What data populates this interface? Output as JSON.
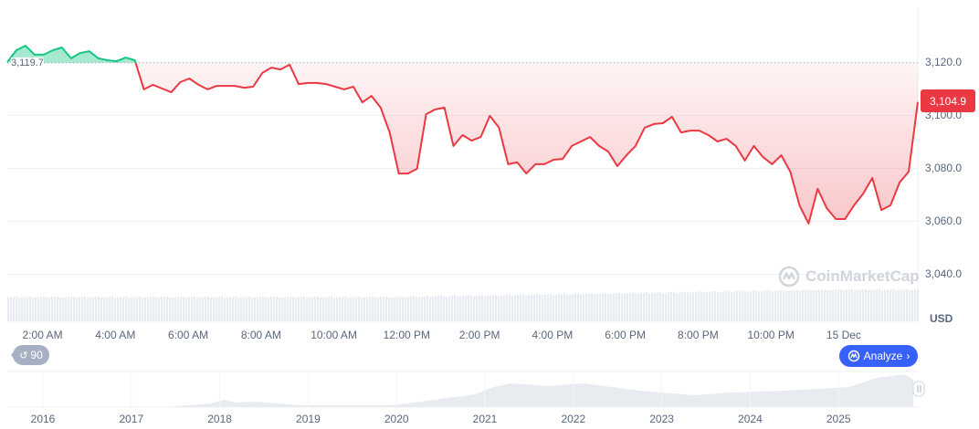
{
  "chart_data": {
    "type": "area",
    "title": "",
    "xlabel": "",
    "ylabel": "",
    "currency_label": "USD",
    "start_time": "01:02",
    "interval_minutes": 15,
    "baseline": 3119.7,
    "baseline_label": "3,119.7",
    "current_price": 3104.9,
    "current_price_label": "3,104.9",
    "ylim": [
      3030,
      3130
    ],
    "grid": true,
    "values": [
      3120.0,
      3124.5,
      3126.2,
      3122.8,
      3122.8,
      3124.5,
      3125.5,
      3121.4,
      3123.4,
      3124.1,
      3121.4,
      3120.7,
      3120.3,
      3121.7,
      3120.7,
      3109.7,
      3111.4,
      3110.0,
      3108.6,
      3112.4,
      3113.8,
      3111.4,
      3109.7,
      3111.0,
      3111.0,
      3111.0,
      3110.3,
      3110.7,
      3115.9,
      3117.9,
      3117.2,
      3119.0,
      3111.7,
      3112.1,
      3112.1,
      3111.7,
      3110.7,
      3109.7,
      3110.7,
      3104.8,
      3107.2,
      3102.8,
      3093.4,
      3077.9,
      3077.9,
      3079.7,
      3100.3,
      3102.1,
      3102.8,
      3088.3,
      3092.4,
      3090.3,
      3091.7,
      3099.7,
      3095.2,
      3081.4,
      3082.1,
      3077.9,
      3081.4,
      3081.4,
      3083.1,
      3083.4,
      3088.3,
      3090.0,
      3091.7,
      3088.3,
      3086.2,
      3080.7,
      3084.8,
      3088.3,
      3095.2,
      3096.6,
      3096.9,
      3099.3,
      3093.4,
      3094.1,
      3094.1,
      3092.4,
      3090.0,
      3091.0,
      3088.3,
      3082.8,
      3088.3,
      3084.1,
      3081.4,
      3084.8,
      3078.6,
      3065.9,
      3059.0,
      3072.1,
      3064.8,
      3060.7,
      3060.7,
      3065.9,
      3070.3,
      3076.2,
      3064.1,
      3065.9,
      3074.5,
      3078.6,
      3104.9
    ],
    "y_ticks": [
      {
        "value": 3120,
        "label": "3,120.0"
      },
      {
        "value": 3100,
        "label": "3,100.0"
      },
      {
        "value": 3080,
        "label": "3,080.0"
      },
      {
        "value": 3060,
        "label": "3,060.0"
      },
      {
        "value": 3040,
        "label": "3,040.0"
      }
    ],
    "x_ticks": [
      {
        "time": "02:00",
        "label": "2:00 AM"
      },
      {
        "time": "04:00",
        "label": "4:00 AM"
      },
      {
        "time": "06:00",
        "label": "6:00 AM"
      },
      {
        "time": "08:00",
        "label": "8:00 AM"
      },
      {
        "time": "10:00",
        "label": "10:00 AM"
      },
      {
        "time": "12:00",
        "label": "12:00 PM"
      },
      {
        "time": "14:00",
        "label": "2:00 PM"
      },
      {
        "time": "16:00",
        "label": "4:00 PM"
      },
      {
        "time": "18:00",
        "label": "6:00 PM"
      },
      {
        "time": "20:00",
        "label": "8:00 PM"
      },
      {
        "time": "22:00",
        "label": "10:00 PM"
      },
      {
        "time": "24:00",
        "label": "15 Dec"
      }
    ],
    "colors": {
      "up": "#16c784",
      "down": "#ea3943",
      "volume": "#e8ebf0"
    }
  },
  "navigator": {
    "years": [
      "2016",
      "2017",
      "2018",
      "2019",
      "2020",
      "2021",
      "2022",
      "2023",
      "2024",
      "2025"
    ]
  },
  "controls": {
    "history_count": "90",
    "history_icon": "history-clock-icon",
    "analyze_label": "Analyze",
    "analyze_icon": "ai-chat-icon"
  },
  "watermark": "CoinMarketCap"
}
